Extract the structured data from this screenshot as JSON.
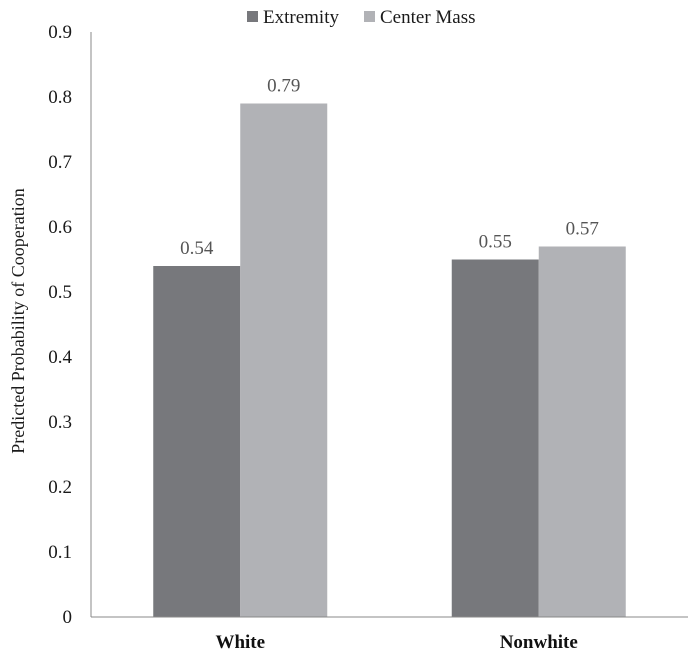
{
  "chart_data": {
    "type": "bar",
    "title": "",
    "xlabel": "",
    "ylabel": "Predicted Probability of Cooperation",
    "categories": [
      "White",
      "Nonwhite"
    ],
    "series": [
      {
        "name": "Extremity",
        "values": [
          0.54,
          0.55
        ],
        "color": "#77787c"
      },
      {
        "name": "Center Mass",
        "values": [
          0.79,
          0.57
        ],
        "color": "#b1b2b6"
      }
    ],
    "data_labels": [
      [
        "0.54",
        "0.55"
      ],
      [
        "0.79",
        "0.57"
      ]
    ],
    "yticks": [
      "0",
      "0.1",
      "0.2",
      "0.3",
      "0.4",
      "0.5",
      "0.6",
      "0.7",
      "0.8",
      "0.9"
    ],
    "ylim": [
      0,
      0.9
    ],
    "grid": false,
    "legend_position": "top"
  }
}
